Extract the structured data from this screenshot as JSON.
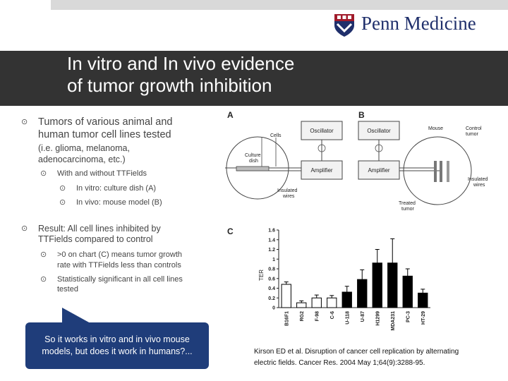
{
  "header": {
    "logo_text": "Penn Medicine"
  },
  "slide": {
    "title_line1": "In vitro and In vivo evidence",
    "title_line2": "of tumor growth inhibition"
  },
  "bullets": {
    "b1": "Tumors of various animal and",
    "b1b": "human tumor cell lines tested",
    "b1_note1": "(i.e. glioma, melanoma,",
    "b1_note2": "adenocarcinoma, etc.)",
    "b1_sub": "With and without TTFields",
    "b1_sub_a": "In vitro: culture dish (A)",
    "b1_sub_b": "In vivo: mouse model (B)",
    "b2": "Result: All cell lines inhibited by",
    "b2b": "TTFields compared to control",
    "b2_sub1a": ">0 on chart (C) means tumor growth",
    "b2_sub1b": "rate with TTFields less than controls",
    "b2_sub2a": "Statistically significant in all cell lines",
    "b2_sub2b": "tested"
  },
  "callout": {
    "line1": "So it works in vitro and in vivo mouse",
    "line2": "models, but does it work in humans?..."
  },
  "citation": {
    "line1": "Kirson ED et al. Disruption of cancer cell replication by alternating",
    "line2": "electric fields. Cancer Res. 2004 May 1;64(9):3288-95."
  },
  "diagram": {
    "panel_a": "A",
    "panel_b": "B",
    "panel_c": "C",
    "a_oscillator": "Oscillator",
    "a_amplifier": "Amplifier",
    "a_cells": "Cells",
    "a_culture1": "Culture",
    "a_culture2": "dish",
    "a_insulated1": "Insulated",
    "a_insulated2": "wires",
    "b_oscillator": "Oscillator",
    "b_amplifier": "Amplifier",
    "b_mouse": "Mouse",
    "b_control1": "Control",
    "b_control2": "tumor",
    "b_insulated1": "Insulated",
    "b_insulated2": "wires",
    "b_treated1": "Treated",
    "b_treated2": "tumor"
  },
  "chart_data": {
    "type": "bar",
    "ylabel": "TER",
    "ylim": [
      0,
      1.6
    ],
    "yticks": [
      "0",
      "0.2",
      "0.4",
      "0.6",
      "0.8",
      "1",
      "1.2",
      "1.4",
      "1.6"
    ],
    "categories": [
      "B16F1",
      "RG2",
      "F-98",
      "C-6",
      "U-118",
      "U-87",
      "H1299",
      "MDA231",
      "PC-3",
      "HT-29"
    ],
    "values": [
      0.48,
      0.1,
      0.2,
      0.2,
      0.32,
      0.58,
      0.92,
      0.92,
      0.65,
      0.3
    ],
    "errors": [
      0.05,
      0.04,
      0.06,
      0.05,
      0.12,
      0.2,
      0.28,
      0.5,
      0.15,
      0.08
    ],
    "fills": [
      "white",
      "white",
      "white",
      "white",
      "black",
      "black",
      "black",
      "black",
      "black",
      "black"
    ]
  }
}
